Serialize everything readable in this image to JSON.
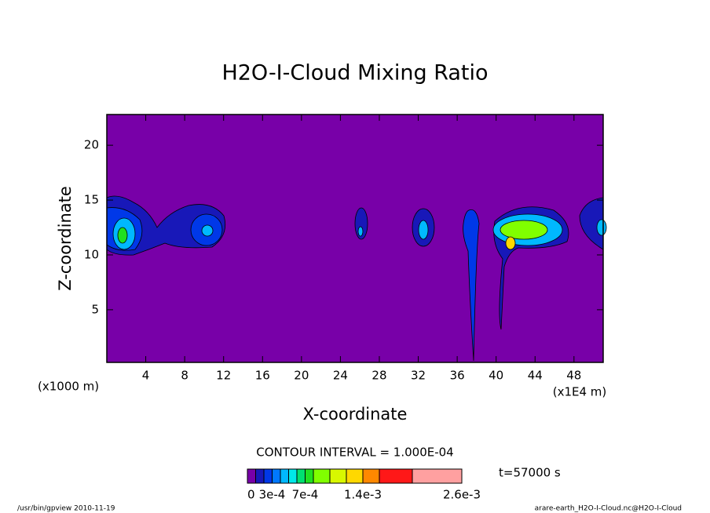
{
  "chart_data": {
    "type": "contour",
    "title": "H2O-I-Cloud Mixing Ratio",
    "x_label": "X-coordinate",
    "y_label": "Z-coordinate",
    "x_unit": "(x1E4 m)",
    "y_unit": "(x1000 m)",
    "xlim": [
      0,
      51
    ],
    "ylim": [
      0.2,
      22.8
    ],
    "xticks": [
      4,
      8,
      12,
      16,
      20,
      24,
      28,
      32,
      36,
      40,
      44,
      48
    ],
    "yticks": [
      5,
      10,
      15,
      20
    ],
    "background_color": "#7800a8",
    "contour_interval": "CONTOUR INTERVAL = 1.000E-04",
    "time_label": "t=57000 s",
    "levels": [
      0,
      0.0001,
      0.0002,
      0.0003,
      0.0004,
      0.0005,
      0.0006,
      0.0007,
      0.0008,
      0.001,
      0.0012,
      0.0014,
      0.0016,
      0.002,
      0.0026
    ],
    "level_colors": [
      "#7800a8",
      "#1818b8",
      "#0038e8",
      "#0078ff",
      "#00b8ff",
      "#00e8e8",
      "#00e070",
      "#20e020",
      "#80ff00",
      "#d8f800",
      "#ffd800",
      "#ff8800",
      "#ff1818",
      "#ffa0a0"
    ],
    "colorbar_labels": [
      0,
      {
        "value": 0.0003,
        "label": "3e-4"
      },
      {
        "value": 0.0007,
        "label": "7e-4"
      },
      {
        "value": 0.0014,
        "label": "1.4e-3"
      },
      {
        "value": 0.0026,
        "label": "2.6e-3"
      }
    ],
    "footer_left": "/usr/bin/gpview   2010-11-19",
    "footer_right": "arare-earth_H2O-I-Cloud.nc@H2O-I-Cloud"
  }
}
